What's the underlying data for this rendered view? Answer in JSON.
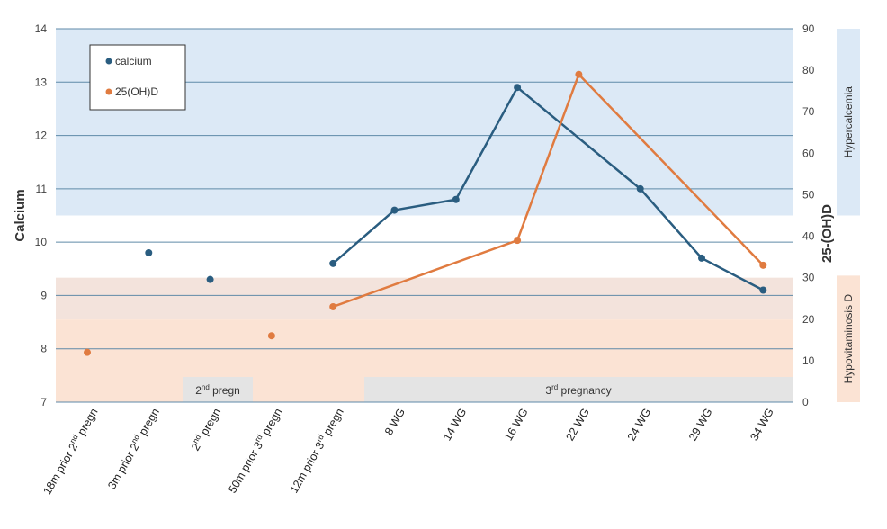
{
  "chart_data": {
    "type": "line",
    "title": "",
    "categories": [
      "18m prior 2nd pregn",
      "3m prior 2nd pregn",
      "2nd pregn",
      "50m prior 3rd pregn",
      "12m prior 3rd pregn",
      "8 WG",
      "14 WG",
      "16 WG",
      "22 WG",
      "24 WG",
      "29 WG",
      "34 WG"
    ],
    "x_tick_labels": [
      {
        "pre": "18m prior 2",
        "sup": "nd",
        "post": " pregn"
      },
      {
        "pre": "3m prior 2",
        "sup": "nd",
        "post": " pregn"
      },
      {
        "pre": "2",
        "sup": "nd",
        "post": " pregn"
      },
      {
        "pre": "50m prior 3",
        "sup": "rd",
        "post": " pregn"
      },
      {
        "pre": "12m prior 3",
        "sup": "rd",
        "post": " pregn"
      },
      {
        "pre": "8 WG",
        "sup": "",
        "post": ""
      },
      {
        "pre": "14 WG",
        "sup": "",
        "post": ""
      },
      {
        "pre": "16 WG",
        "sup": "",
        "post": ""
      },
      {
        "pre": "22 WG",
        "sup": "",
        "post": ""
      },
      {
        "pre": "24 WG",
        "sup": "",
        "post": ""
      },
      {
        "pre": "29 WG",
        "sup": "",
        "post": ""
      },
      {
        "pre": "34 WG",
        "sup": "",
        "post": ""
      }
    ],
    "series": [
      {
        "name": "calcium",
        "axis": "left",
        "color": "#2a5d80",
        "values": [
          null,
          9.8,
          9.3,
          null,
          9.6,
          10.6,
          10.8,
          12.9,
          null,
          11.0,
          9.7,
          9.1
        ],
        "connected_from_index": 4
      },
      {
        "name": "25(OH)D",
        "axis": "right",
        "color": "#e07b40",
        "values": [
          12,
          null,
          null,
          16,
          23,
          null,
          null,
          39,
          79,
          null,
          null,
          33
        ],
        "connected_from_index": 4
      }
    ],
    "y_left": {
      "label": "Calcium",
      "range": [
        7,
        14
      ],
      "ticks": [
        7,
        8,
        9,
        10,
        11,
        12,
        13,
        14
      ]
    },
    "y_right": {
      "label": "25-(OH)D",
      "range": [
        0,
        90
      ],
      "ticks": [
        0,
        10,
        20,
        30,
        40,
        50,
        60,
        70,
        80,
        90
      ]
    },
    "grid": true,
    "legend": {
      "position": "top-left",
      "entries": [
        "calcium",
        "25(OH)D"
      ]
    },
    "bands": [
      {
        "label": "Hypercalcemia",
        "axis": "left",
        "from": 10.5,
        "to": 14,
        "color": "#dce9f6"
      },
      {
        "label": "Hypovitaminosis D",
        "axis": "right",
        "from": 0,
        "to": 30,
        "color": "#fbe3d4"
      }
    ],
    "overlap_band_color": "#f3e3dc",
    "periods": [
      {
        "pre": "2",
        "sup": "nd",
        "post": " pregn",
        "from_index": 2,
        "to_index": 2
      },
      {
        "pre": "3",
        "sup": "rd",
        "post": " pregnancy",
        "from_index": 5,
        "to_index": 11
      }
    ],
    "period_color": "#e4e4e4"
  }
}
